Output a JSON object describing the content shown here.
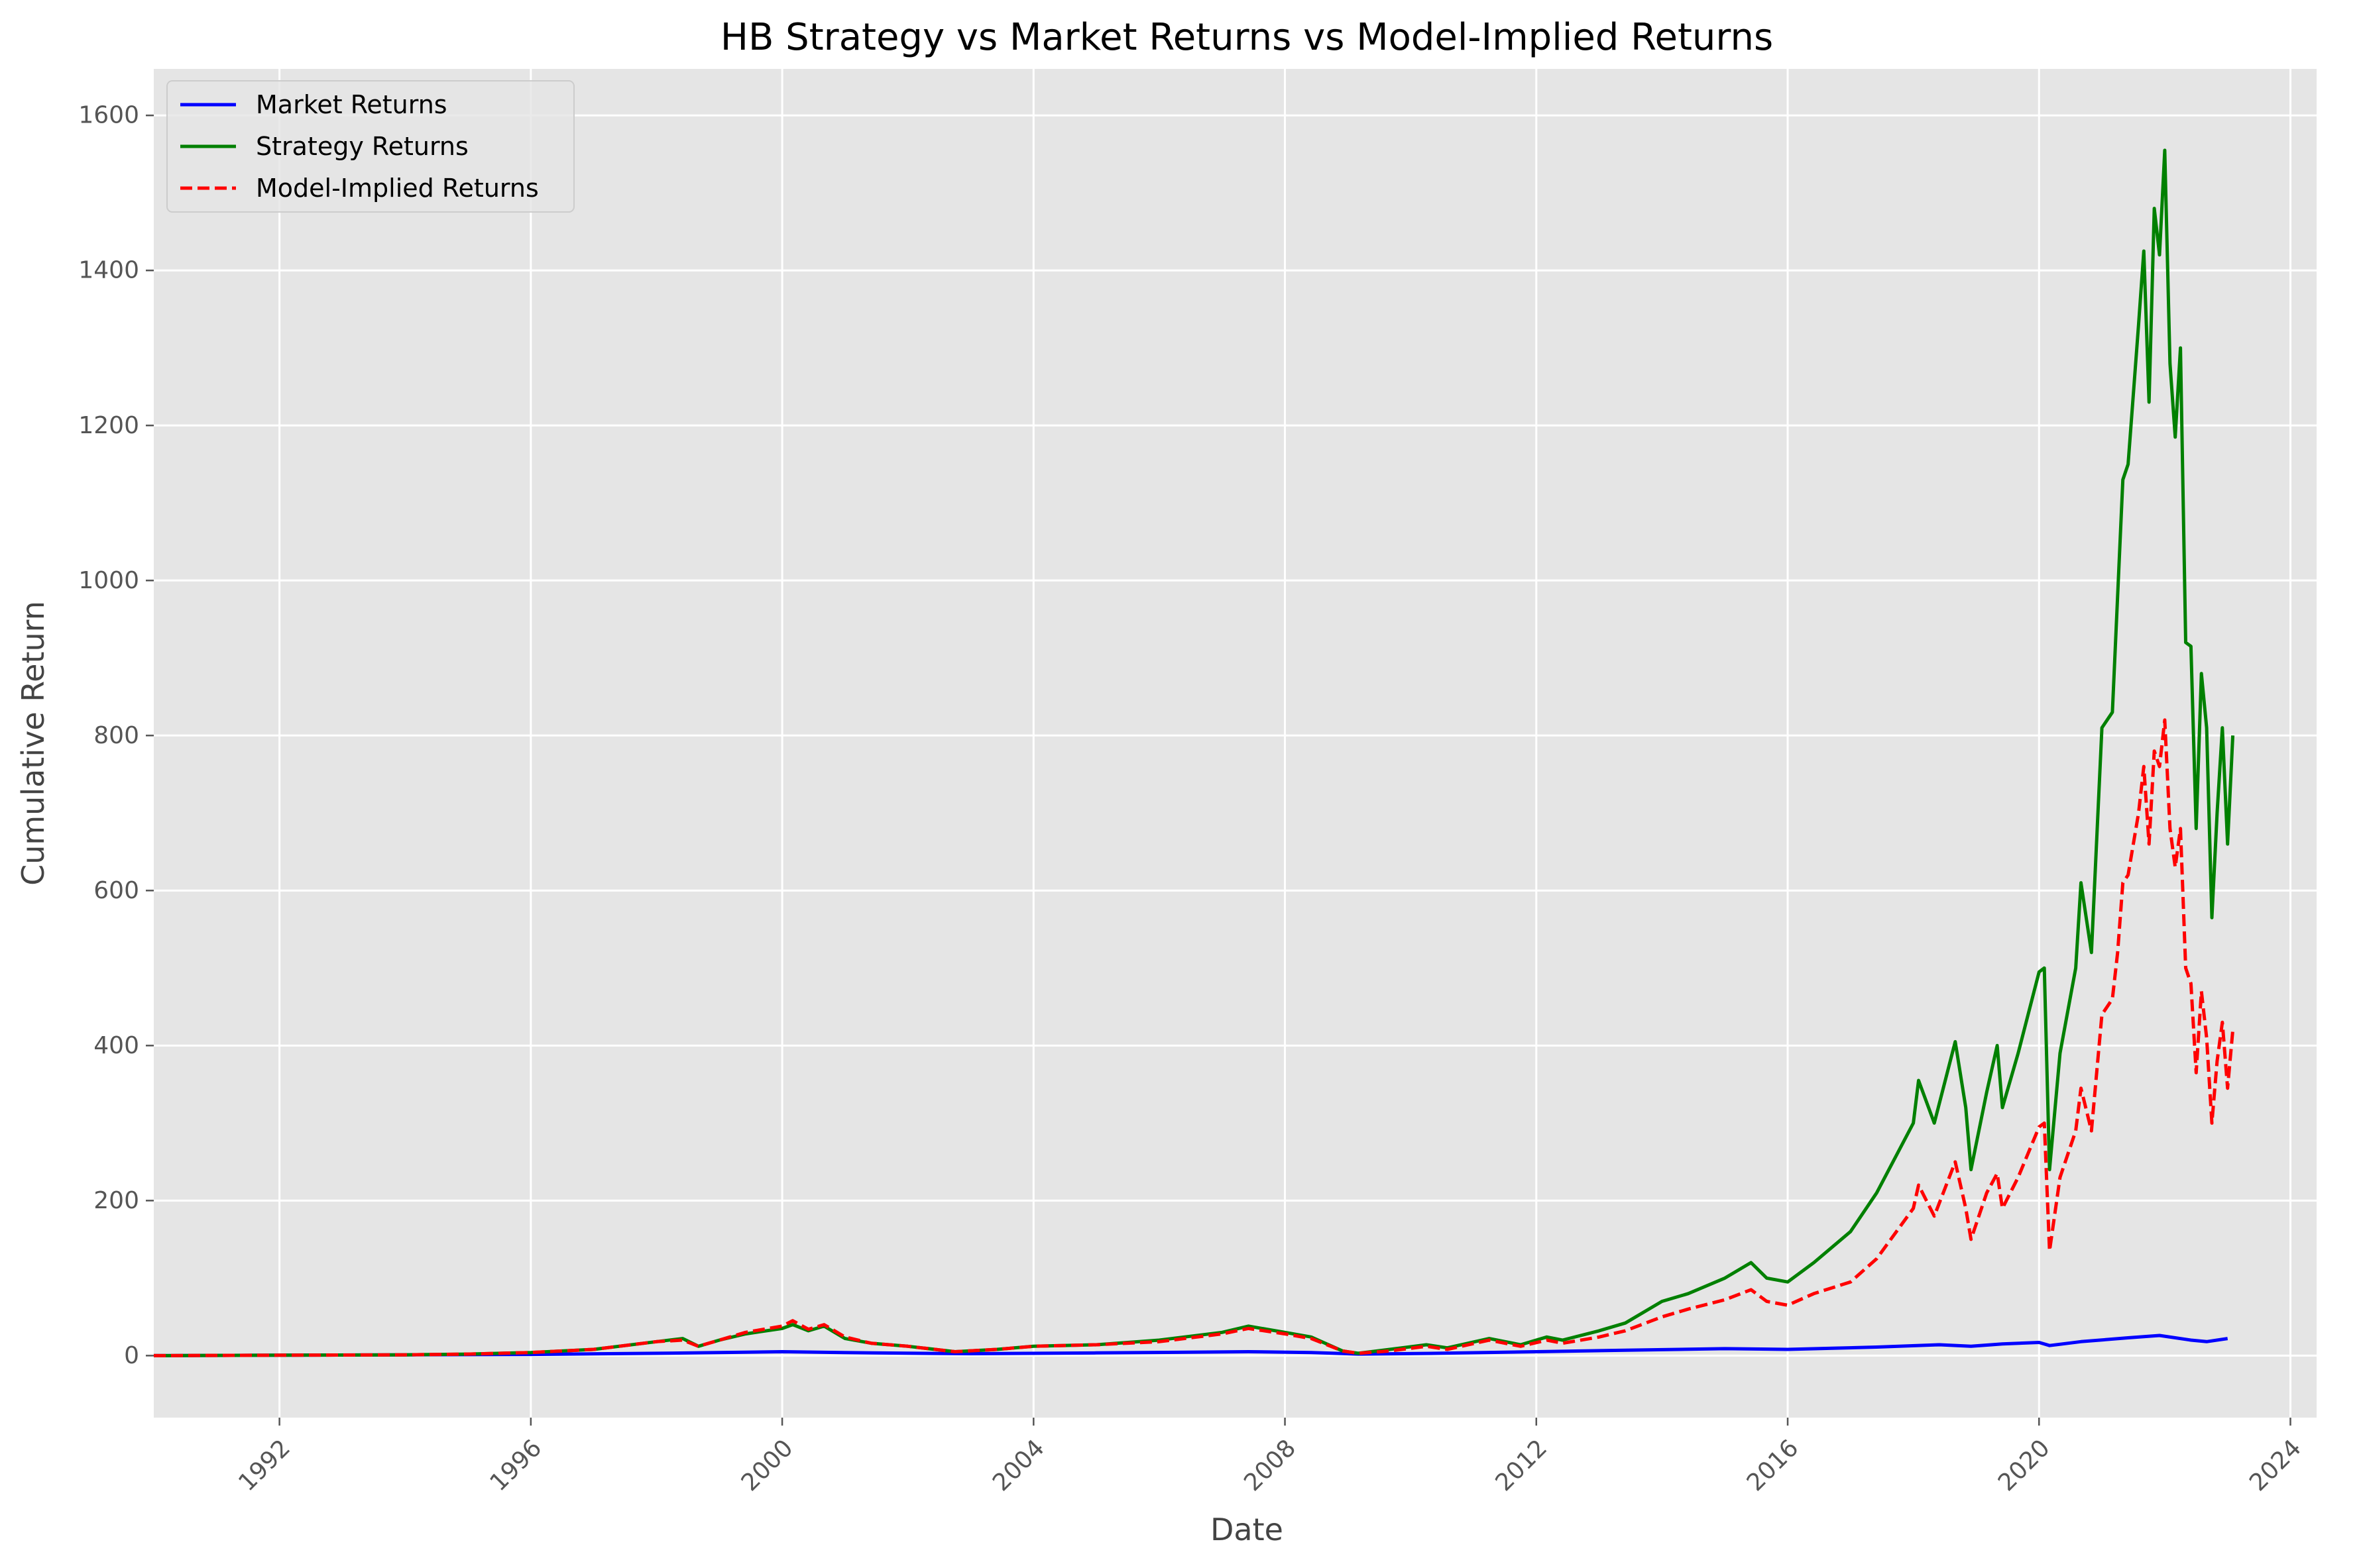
{
  "chart_data": {
    "type": "line",
    "title": "HB Strategy vs Market Returns vs Model-Implied Returns",
    "xlabel": "Date",
    "ylabel": "Cumulative Return",
    "xlim": [
      "1990-01",
      "2024-06"
    ],
    "ylim": [
      -80,
      1660
    ],
    "x_ticks": [
      "1992",
      "1996",
      "2000",
      "2004",
      "2008",
      "2012",
      "2016",
      "2020",
      "2024"
    ],
    "y_ticks": [
      "0",
      "200",
      "400",
      "600",
      "800",
      "1000",
      "1200",
      "1400",
      "1600"
    ],
    "grid": true,
    "legend_position": "upper-left",
    "colors": {
      "background": "#e5e5e5",
      "grid": "#ffffff",
      "market": "#0000ff",
      "strategy": "#008000",
      "model": "#ff0000"
    },
    "series": [
      {
        "name": "Market Returns",
        "color": "#0000ff",
        "style": "solid",
        "points": [
          [
            "1990-01",
            0
          ],
          [
            "1992-01",
            0.5
          ],
          [
            "1994-01",
            1
          ],
          [
            "1996-01",
            1.5
          ],
          [
            "1998-01",
            3
          ],
          [
            "2000-01",
            5
          ],
          [
            "2001-06",
            3.5
          ],
          [
            "2003-01",
            2.5
          ],
          [
            "2005-01",
            3.5
          ],
          [
            "2007-06",
            5
          ],
          [
            "2008-06",
            4
          ],
          [
            "2009-03",
            2
          ],
          [
            "2010-06",
            3
          ],
          [
            "2012-01",
            5
          ],
          [
            "2013-06",
            7
          ],
          [
            "2015-01",
            9
          ],
          [
            "2016-01",
            8
          ],
          [
            "2017-06",
            11
          ],
          [
            "2018-06",
            14
          ],
          [
            "2018-12",
            12
          ],
          [
            "2019-06",
            15
          ],
          [
            "2020-01",
            17
          ],
          [
            "2020-03",
            13
          ],
          [
            "2020-09",
            18
          ],
          [
            "2021-06",
            23
          ],
          [
            "2021-12",
            26
          ],
          [
            "2022-06",
            20
          ],
          [
            "2022-09",
            18
          ],
          [
            "2023-01",
            22
          ]
        ]
      },
      {
        "name": "Strategy Returns",
        "color": "#008000",
        "style": "solid",
        "points": [
          [
            "1990-01",
            0
          ],
          [
            "1992-01",
            0.5
          ],
          [
            "1994-01",
            1
          ],
          [
            "1995-01",
            2
          ],
          [
            "1996-01",
            4
          ],
          [
            "1997-01",
            8
          ],
          [
            "1998-01",
            18
          ],
          [
            "1998-06",
            22
          ],
          [
            "1998-09",
            12
          ],
          [
            "1999-01",
            20
          ],
          [
            "1999-06",
            28
          ],
          [
            "2000-01",
            35
          ],
          [
            "2000-03",
            40
          ],
          [
            "2000-06",
            32
          ],
          [
            "2000-09",
            38
          ],
          [
            "2001-01",
            22
          ],
          [
            "2001-06",
            16
          ],
          [
            "2002-01",
            12
          ],
          [
            "2002-10",
            5
          ],
          [
            "2003-06",
            8
          ],
          [
            "2004-01",
            12
          ],
          [
            "2005-01",
            14
          ],
          [
            "2006-01",
            20
          ],
          [
            "2007-01",
            30
          ],
          [
            "2007-06",
            38
          ],
          [
            "2008-01",
            30
          ],
          [
            "2008-06",
            24
          ],
          [
            "2008-12",
            6
          ],
          [
            "2009-03",
            3
          ],
          [
            "2009-09",
            8
          ],
          [
            "2010-04",
            14
          ],
          [
            "2010-08",
            10
          ],
          [
            "2011-04",
            22
          ],
          [
            "2011-10",
            14
          ],
          [
            "2012-03",
            24
          ],
          [
            "2012-06",
            20
          ],
          [
            "2013-01",
            32
          ],
          [
            "2013-06",
            42
          ],
          [
            "2014-01",
            70
          ],
          [
            "2014-06",
            80
          ],
          [
            "2015-01",
            100
          ],
          [
            "2015-06",
            120
          ],
          [
            "2015-09",
            100
          ],
          [
            "2016-01",
            95
          ],
          [
            "2016-06",
            120
          ],
          [
            "2017-01",
            160
          ],
          [
            "2017-06",
            210
          ],
          [
            "2018-01",
            300
          ],
          [
            "2018-02",
            355
          ],
          [
            "2018-05",
            300
          ],
          [
            "2018-09",
            405
          ],
          [
            "2018-11",
            320
          ],
          [
            "2018-12",
            240
          ],
          [
            "2019-03",
            340
          ],
          [
            "2019-05",
            400
          ],
          [
            "2019-06",
            320
          ],
          [
            "2019-09",
            390
          ],
          [
            "2020-01",
            495
          ],
          [
            "2020-02",
            500
          ],
          [
            "2020-03",
            240
          ],
          [
            "2020-05",
            390
          ],
          [
            "2020-08",
            500
          ],
          [
            "2020-09",
            610
          ],
          [
            "2020-11",
            520
          ],
          [
            "2021-01",
            810
          ],
          [
            "2021-03",
            830
          ],
          [
            "2021-04",
            980
          ],
          [
            "2021-05",
            1130
          ],
          [
            "2021-06",
            1150
          ],
          [
            "2021-08",
            1330
          ],
          [
            "2021-09",
            1425
          ],
          [
            "2021-10",
            1230
          ],
          [
            "2021-11",
            1480
          ],
          [
            "2021-12",
            1420
          ],
          [
            "2022-01",
            1555
          ],
          [
            "2022-02",
            1280
          ],
          [
            "2022-03",
            1185
          ],
          [
            "2022-04",
            1300
          ],
          [
            "2022-05",
            920
          ],
          [
            "2022-06",
            915
          ],
          [
            "2022-07",
            680
          ],
          [
            "2022-08",
            880
          ],
          [
            "2022-09",
            810
          ],
          [
            "2022-10",
            565
          ],
          [
            "2022-11",
            700
          ],
          [
            "2022-12",
            810
          ],
          [
            "2023-01",
            660
          ],
          [
            "2023-02",
            800
          ]
        ]
      },
      {
        "name": "Model-Implied Returns",
        "color": "#ff0000",
        "style": "dashed",
        "points": [
          [
            "1990-01",
            0
          ],
          [
            "1992-01",
            0.5
          ],
          [
            "1994-01",
            1
          ],
          [
            "1995-01",
            2
          ],
          [
            "1996-01",
            4
          ],
          [
            "1997-01",
            8
          ],
          [
            "1998-01",
            18
          ],
          [
            "1998-06",
            20
          ],
          [
            "1998-09",
            12
          ],
          [
            "1999-01",
            20
          ],
          [
            "1999-06",
            30
          ],
          [
            "2000-01",
            38
          ],
          [
            "2000-03",
            45
          ],
          [
            "2000-06",
            34
          ],
          [
            "2000-09",
            40
          ],
          [
            "2001-01",
            24
          ],
          [
            "2001-06",
            16
          ],
          [
            "2002-01",
            12
          ],
          [
            "2002-10",
            5
          ],
          [
            "2003-06",
            8
          ],
          [
            "2004-01",
            12
          ],
          [
            "2005-01",
            14
          ],
          [
            "2006-01",
            18
          ],
          [
            "2007-01",
            28
          ],
          [
            "2007-06",
            35
          ],
          [
            "2008-01",
            28
          ],
          [
            "2008-06",
            22
          ],
          [
            "2008-12",
            6
          ],
          [
            "2009-03",
            3
          ],
          [
            "2009-09",
            6
          ],
          [
            "2010-04",
            12
          ],
          [
            "2010-08",
            8
          ],
          [
            "2011-04",
            20
          ],
          [
            "2011-10",
            12
          ],
          [
            "2012-03",
            20
          ],
          [
            "2012-06",
            16
          ],
          [
            "2013-01",
            24
          ],
          [
            "2013-06",
            32
          ],
          [
            "2014-01",
            50
          ],
          [
            "2014-06",
            60
          ],
          [
            "2015-01",
            72
          ],
          [
            "2015-06",
            85
          ],
          [
            "2015-09",
            70
          ],
          [
            "2016-01",
            65
          ],
          [
            "2016-06",
            80
          ],
          [
            "2017-01",
            95
          ],
          [
            "2017-06",
            125
          ],
          [
            "2018-01",
            190
          ],
          [
            "2018-02",
            220
          ],
          [
            "2018-05",
            180
          ],
          [
            "2018-09",
            250
          ],
          [
            "2018-11",
            190
          ],
          [
            "2018-12",
            150
          ],
          [
            "2019-03",
            210
          ],
          [
            "2019-05",
            235
          ],
          [
            "2019-06",
            190
          ],
          [
            "2019-09",
            230
          ],
          [
            "2020-01",
            295
          ],
          [
            "2020-02",
            300
          ],
          [
            "2020-03",
            135
          ],
          [
            "2020-05",
            230
          ],
          [
            "2020-08",
            290
          ],
          [
            "2020-09",
            345
          ],
          [
            "2020-11",
            290
          ],
          [
            "2021-01",
            440
          ],
          [
            "2021-03",
            460
          ],
          [
            "2021-04",
            520
          ],
          [
            "2021-05",
            610
          ],
          [
            "2021-06",
            620
          ],
          [
            "2021-08",
            700
          ],
          [
            "2021-09",
            760
          ],
          [
            "2021-10",
            660
          ],
          [
            "2021-11",
            780
          ],
          [
            "2021-12",
            760
          ],
          [
            "2022-01",
            820
          ],
          [
            "2022-02",
            680
          ],
          [
            "2022-03",
            630
          ],
          [
            "2022-04",
            680
          ],
          [
            "2022-05",
            500
          ],
          [
            "2022-06",
            480
          ],
          [
            "2022-07",
            365
          ],
          [
            "2022-08",
            470
          ],
          [
            "2022-09",
            410
          ],
          [
            "2022-10",
            300
          ],
          [
            "2022-11",
            380
          ],
          [
            "2022-12",
            430
          ],
          [
            "2023-01",
            345
          ],
          [
            "2023-02",
            420
          ]
        ]
      }
    ]
  }
}
